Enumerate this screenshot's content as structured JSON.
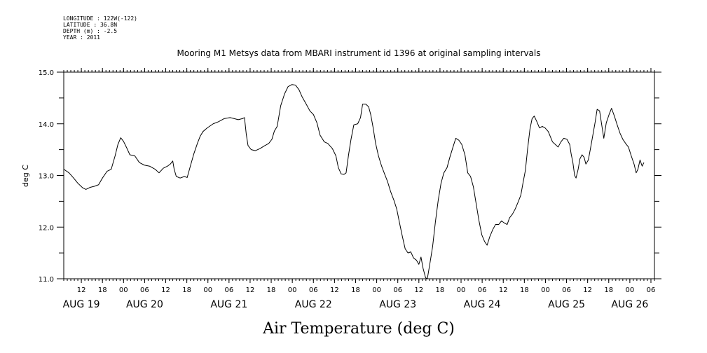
{
  "meta": {
    "longitude": "LONGITUDE : 122W(-122)",
    "latitude": "LATITUDE : 36.8N",
    "depth": "DEPTH (m) : -2.5",
    "year": "YEAR : 2011"
  },
  "chart_data": {
    "type": "line",
    "title": "Mooring M1 Metsys data from MBARI instrument id 1396 at original sampling intervals",
    "xlabel": "Air Temperature (deg C)",
    "ylabel": "deg C",
    "ylim": [
      11.0,
      15.0
    ],
    "yticks": [
      "11.0",
      "12.0",
      "13.0",
      "14.0",
      "15.0"
    ],
    "x_unit": "hours since Aug 19 00:00 2011",
    "xlim": [
      7,
      175
    ],
    "x_hour_ticks": [
      {
        "h": 12,
        "label": "12"
      },
      {
        "h": 18,
        "label": "18"
      },
      {
        "h": 24,
        "label": "00"
      },
      {
        "h": 30,
        "label": "06"
      },
      {
        "h": 36,
        "label": "12"
      },
      {
        "h": 42,
        "label": "18"
      },
      {
        "h": 48,
        "label": "00"
      },
      {
        "h": 54,
        "label": "06"
      },
      {
        "h": 60,
        "label": "12"
      },
      {
        "h": 66,
        "label": "18"
      },
      {
        "h": 72,
        "label": "00"
      },
      {
        "h": 78,
        "label": "06"
      },
      {
        "h": 84,
        "label": "12"
      },
      {
        "h": 90,
        "label": "18"
      },
      {
        "h": 96,
        "label": "00"
      },
      {
        "h": 102,
        "label": "06"
      },
      {
        "h": 108,
        "label": "12"
      },
      {
        "h": 114,
        "label": "18"
      },
      {
        "h": 120,
        "label": "00"
      },
      {
        "h": 126,
        "label": "06"
      },
      {
        "h": 132,
        "label": "12"
      },
      {
        "h": 138,
        "label": "18"
      },
      {
        "h": 144,
        "label": "00"
      },
      {
        "h": 150,
        "label": "06"
      },
      {
        "h": 156,
        "label": "12"
      },
      {
        "h": 162,
        "label": "18"
      },
      {
        "h": 168,
        "label": "00"
      },
      {
        "h": 174,
        "label": "06"
      }
    ],
    "x_day_labels": [
      {
        "h": 12,
        "label": "AUG 19"
      },
      {
        "h": 30,
        "label": "AUG 20"
      },
      {
        "h": 54,
        "label": "AUG 21"
      },
      {
        "h": 78,
        "label": "AUG 22"
      },
      {
        "h": 102,
        "label": "AUG 23"
      },
      {
        "h": 126,
        "label": "AUG 24"
      },
      {
        "h": 150,
        "label": "AUG 25"
      },
      {
        "h": 168,
        "label": "AUG 26"
      }
    ],
    "series": [
      {
        "points": [
          [
            7.0,
            13.12
          ],
          [
            8.5,
            13.05
          ],
          [
            9.8,
            12.95
          ],
          [
            11.0,
            12.85
          ],
          [
            12.4,
            12.76
          ],
          [
            13.3,
            12.73
          ],
          [
            14.5,
            12.77
          ],
          [
            15.7,
            12.79
          ],
          [
            16.9,
            12.82
          ],
          [
            18.0,
            12.95
          ],
          [
            19.3,
            13.08
          ],
          [
            20.5,
            13.12
          ],
          [
            21.6,
            13.38
          ],
          [
            22.4,
            13.6
          ],
          [
            23.2,
            13.73
          ],
          [
            24.0,
            13.66
          ],
          [
            25.0,
            13.52
          ],
          [
            25.8,
            13.4
          ],
          [
            27.2,
            13.38
          ],
          [
            28.5,
            13.25
          ],
          [
            29.9,
            13.2
          ],
          [
            31.4,
            13.18
          ],
          [
            33.0,
            13.12
          ],
          [
            34.1,
            13.05
          ],
          [
            35.3,
            13.14
          ],
          [
            36.5,
            13.18
          ],
          [
            37.3,
            13.22
          ],
          [
            38.0,
            13.28
          ],
          [
            38.4,
            13.12
          ],
          [
            39.0,
            12.98
          ],
          [
            40.1,
            12.95
          ],
          [
            41.3,
            12.98
          ],
          [
            42.1,
            12.96
          ],
          [
            43.0,
            13.18
          ],
          [
            44.0,
            13.42
          ],
          [
            45.0,
            13.62
          ],
          [
            45.8,
            13.76
          ],
          [
            46.6,
            13.85
          ],
          [
            47.8,
            13.92
          ],
          [
            49.5,
            14.0
          ],
          [
            51.0,
            14.04
          ],
          [
            52.6,
            14.1
          ],
          [
            54.3,
            14.12
          ],
          [
            55.5,
            14.1
          ],
          [
            56.6,
            14.08
          ],
          [
            57.8,
            14.1
          ],
          [
            58.4,
            14.12
          ],
          [
            58.9,
            13.8
          ],
          [
            59.4,
            13.58
          ],
          [
            60.3,
            13.5
          ],
          [
            61.5,
            13.48
          ],
          [
            62.8,
            13.52
          ],
          [
            64.0,
            13.57
          ],
          [
            65.3,
            13.62
          ],
          [
            66.2,
            13.7
          ],
          [
            66.9,
            13.86
          ],
          [
            67.7,
            13.95
          ],
          [
            68.7,
            14.35
          ],
          [
            69.8,
            14.58
          ],
          [
            70.8,
            14.72
          ],
          [
            71.9,
            14.76
          ],
          [
            72.9,
            14.75
          ],
          [
            73.9,
            14.66
          ],
          [
            74.8,
            14.52
          ],
          [
            75.8,
            14.4
          ],
          [
            77.0,
            14.25
          ],
          [
            78.0,
            14.18
          ],
          [
            79.0,
            14.02
          ],
          [
            79.9,
            13.78
          ],
          [
            81.1,
            13.65
          ],
          [
            82.1,
            13.62
          ],
          [
            83.4,
            13.52
          ],
          [
            84.4,
            13.38
          ],
          [
            85.1,
            13.15
          ],
          [
            85.9,
            13.03
          ],
          [
            86.7,
            13.02
          ],
          [
            87.3,
            13.05
          ],
          [
            88.0,
            13.4
          ],
          [
            88.7,
            13.7
          ],
          [
            89.5,
            13.98
          ],
          [
            90.6,
            14.0
          ],
          [
            91.4,
            14.12
          ],
          [
            92.0,
            14.38
          ],
          [
            92.9,
            14.38
          ],
          [
            93.7,
            14.33
          ],
          [
            94.3,
            14.18
          ],
          [
            95.0,
            13.92
          ],
          [
            95.7,
            13.62
          ],
          [
            96.5,
            13.38
          ],
          [
            97.4,
            13.18
          ],
          [
            98.3,
            13.02
          ],
          [
            99.1,
            12.88
          ],
          [
            100.0,
            12.68
          ],
          [
            100.9,
            12.52
          ],
          [
            101.7,
            12.35
          ],
          [
            102.5,
            12.08
          ],
          [
            103.3,
            11.82
          ],
          [
            104.1,
            11.58
          ],
          [
            104.9,
            11.5
          ],
          [
            105.7,
            11.52
          ],
          [
            106.5,
            11.4
          ],
          [
            107.3,
            11.36
          ],
          [
            108.0,
            11.28
          ],
          [
            108.6,
            11.42
          ],
          [
            109.2,
            11.2
          ],
          [
            109.9,
            11.02
          ],
          [
            110.4,
            11.0
          ],
          [
            111.1,
            11.28
          ],
          [
            111.9,
            11.62
          ],
          [
            112.7,
            12.1
          ],
          [
            113.5,
            12.52
          ],
          [
            114.3,
            12.85
          ],
          [
            115.1,
            13.05
          ],
          [
            116.0,
            13.15
          ],
          [
            116.8,
            13.35
          ],
          [
            117.7,
            13.55
          ],
          [
            118.5,
            13.72
          ],
          [
            119.4,
            13.68
          ],
          [
            120.2,
            13.6
          ],
          [
            121.1,
            13.4
          ],
          [
            121.9,
            13.05
          ],
          [
            122.7,
            12.98
          ],
          [
            123.5,
            12.78
          ],
          [
            124.3,
            12.45
          ],
          [
            125.1,
            12.12
          ],
          [
            125.9,
            11.85
          ],
          [
            126.7,
            11.72
          ],
          [
            127.4,
            11.65
          ],
          [
            128.2,
            11.82
          ],
          [
            129.0,
            11.95
          ],
          [
            129.8,
            12.05
          ],
          [
            130.7,
            12.05
          ],
          [
            131.5,
            12.12
          ],
          [
            132.3,
            12.08
          ],
          [
            133.1,
            12.05
          ],
          [
            133.8,
            12.18
          ],
          [
            134.6,
            12.25
          ],
          [
            135.4,
            12.35
          ],
          [
            136.2,
            12.48
          ],
          [
            137.0,
            12.62
          ],
          [
            137.6,
            12.85
          ],
          [
            138.3,
            13.1
          ],
          [
            138.9,
            13.5
          ],
          [
            139.6,
            13.9
          ],
          [
            140.2,
            14.1
          ],
          [
            140.8,
            14.15
          ],
          [
            141.5,
            14.05
          ],
          [
            142.3,
            13.92
          ],
          [
            143.1,
            13.95
          ],
          [
            143.9,
            13.92
          ],
          [
            144.8,
            13.85
          ],
          [
            145.4,
            13.75
          ],
          [
            146.0,
            13.65
          ],
          [
            146.8,
            13.6
          ],
          [
            147.6,
            13.55
          ],
          [
            148.4,
            13.65
          ],
          [
            149.2,
            13.72
          ],
          [
            150.1,
            13.7
          ],
          [
            150.9,
            13.6
          ],
          [
            151.3,
            13.42
          ],
          [
            151.8,
            13.25
          ],
          [
            152.3,
            13.0
          ],
          [
            152.7,
            12.95
          ],
          [
            153.3,
            13.12
          ],
          [
            153.8,
            13.32
          ],
          [
            154.4,
            13.4
          ],
          [
            155.0,
            13.35
          ],
          [
            155.5,
            13.22
          ],
          [
            156.2,
            13.3
          ],
          [
            156.8,
            13.52
          ],
          [
            157.4,
            13.75
          ],
          [
            158.1,
            14.02
          ],
          [
            158.7,
            14.28
          ],
          [
            159.4,
            14.25
          ],
          [
            160.0,
            13.98
          ],
          [
            160.6,
            13.72
          ],
          [
            161.3,
            14.02
          ],
          [
            162.1,
            14.18
          ],
          [
            162.8,
            14.3
          ],
          [
            163.6,
            14.15
          ],
          [
            164.4,
            13.98
          ],
          [
            165.2,
            13.82
          ],
          [
            166.0,
            13.7
          ],
          [
            166.8,
            13.62
          ],
          [
            167.6,
            13.55
          ],
          [
            168.4,
            13.38
          ],
          [
            169.2,
            13.22
          ],
          [
            169.8,
            13.05
          ],
          [
            170.3,
            13.12
          ],
          [
            170.9,
            13.3
          ],
          [
            171.5,
            13.18
          ],
          [
            172.0,
            13.25
          ]
        ]
      }
    ]
  }
}
